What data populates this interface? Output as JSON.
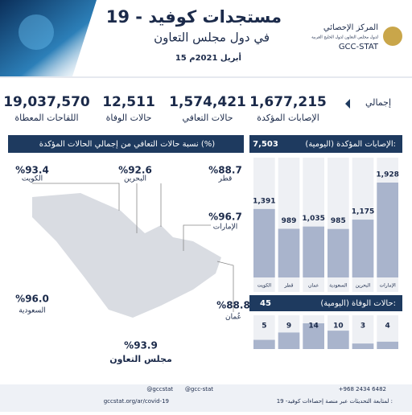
{
  "header": {
    "title": "مستجدات كوفيد - 19",
    "subtitle": "في دول مجلس التعاون",
    "date": "15 أبريل 2021م",
    "org_name": "المركز الإحصائي",
    "org_subname": "لدول مجلس التعاون لدول الخليج العربية",
    "org_short": "GCC-STAT"
  },
  "totals": {
    "label": "إجمالي",
    "items": [
      {
        "value": "1,677,215",
        "label": "الإصابات المؤكدة"
      },
      {
        "value": "1,574,421",
        "label": "حالات التعافي"
      },
      {
        "value": "12,511",
        "label": "حالات الوفاة"
      },
      {
        "value": "19,037,570",
        "label": "اللقاحات المعطاة"
      }
    ]
  },
  "recovery": {
    "title": "نسبة حالات التعافي من إجمالي الحالات المؤكدة (%)",
    "countries": [
      {
        "name": "الكويت",
        "value": "%93.4"
      },
      {
        "name": "البحرين",
        "value": "%92.6"
      },
      {
        "name": "قطر",
        "value": "%88.7"
      },
      {
        "name": "الإمارات",
        "value": "%96.7"
      },
      {
        "name": "السعودية",
        "value": "%96.0"
      },
      {
        "name": "عُمان",
        "value": "%88.8"
      },
      {
        "name": "مجلس التعاون",
        "value": "%93.9"
      }
    ]
  },
  "chart_data": [
    {
      "type": "bar",
      "title": "الإصابات المؤكدة (اليومية):",
      "total": "7,503",
      "categories": [
        "الكويت",
        "قطر",
        "عمان",
        "السعودية",
        "البحرين",
        "الإمارات"
      ],
      "values": [
        1391,
        989,
        1035,
        985,
        1175,
        1928
      ],
      "value_labels": [
        "1,391",
        "989",
        "1,035",
        "985",
        "1,175",
        "1,928"
      ],
      "color": "#a9b4cc"
    },
    {
      "type": "bar",
      "title": "حالات الوفاة (اليومية):",
      "total": "45",
      "values": [
        5,
        9,
        14,
        10,
        3,
        4
      ],
      "color": "#a9b4cc"
    }
  ],
  "footer": {
    "handle1": "@gccstat",
    "handle2": "@gcc-stat",
    "phone": "+968 2434 6482",
    "follow": "لمتابعة التحديثات عبر منصة إحصاءات كوفيد- 19 :",
    "url": "gccstat.org/ar/covid-19"
  }
}
